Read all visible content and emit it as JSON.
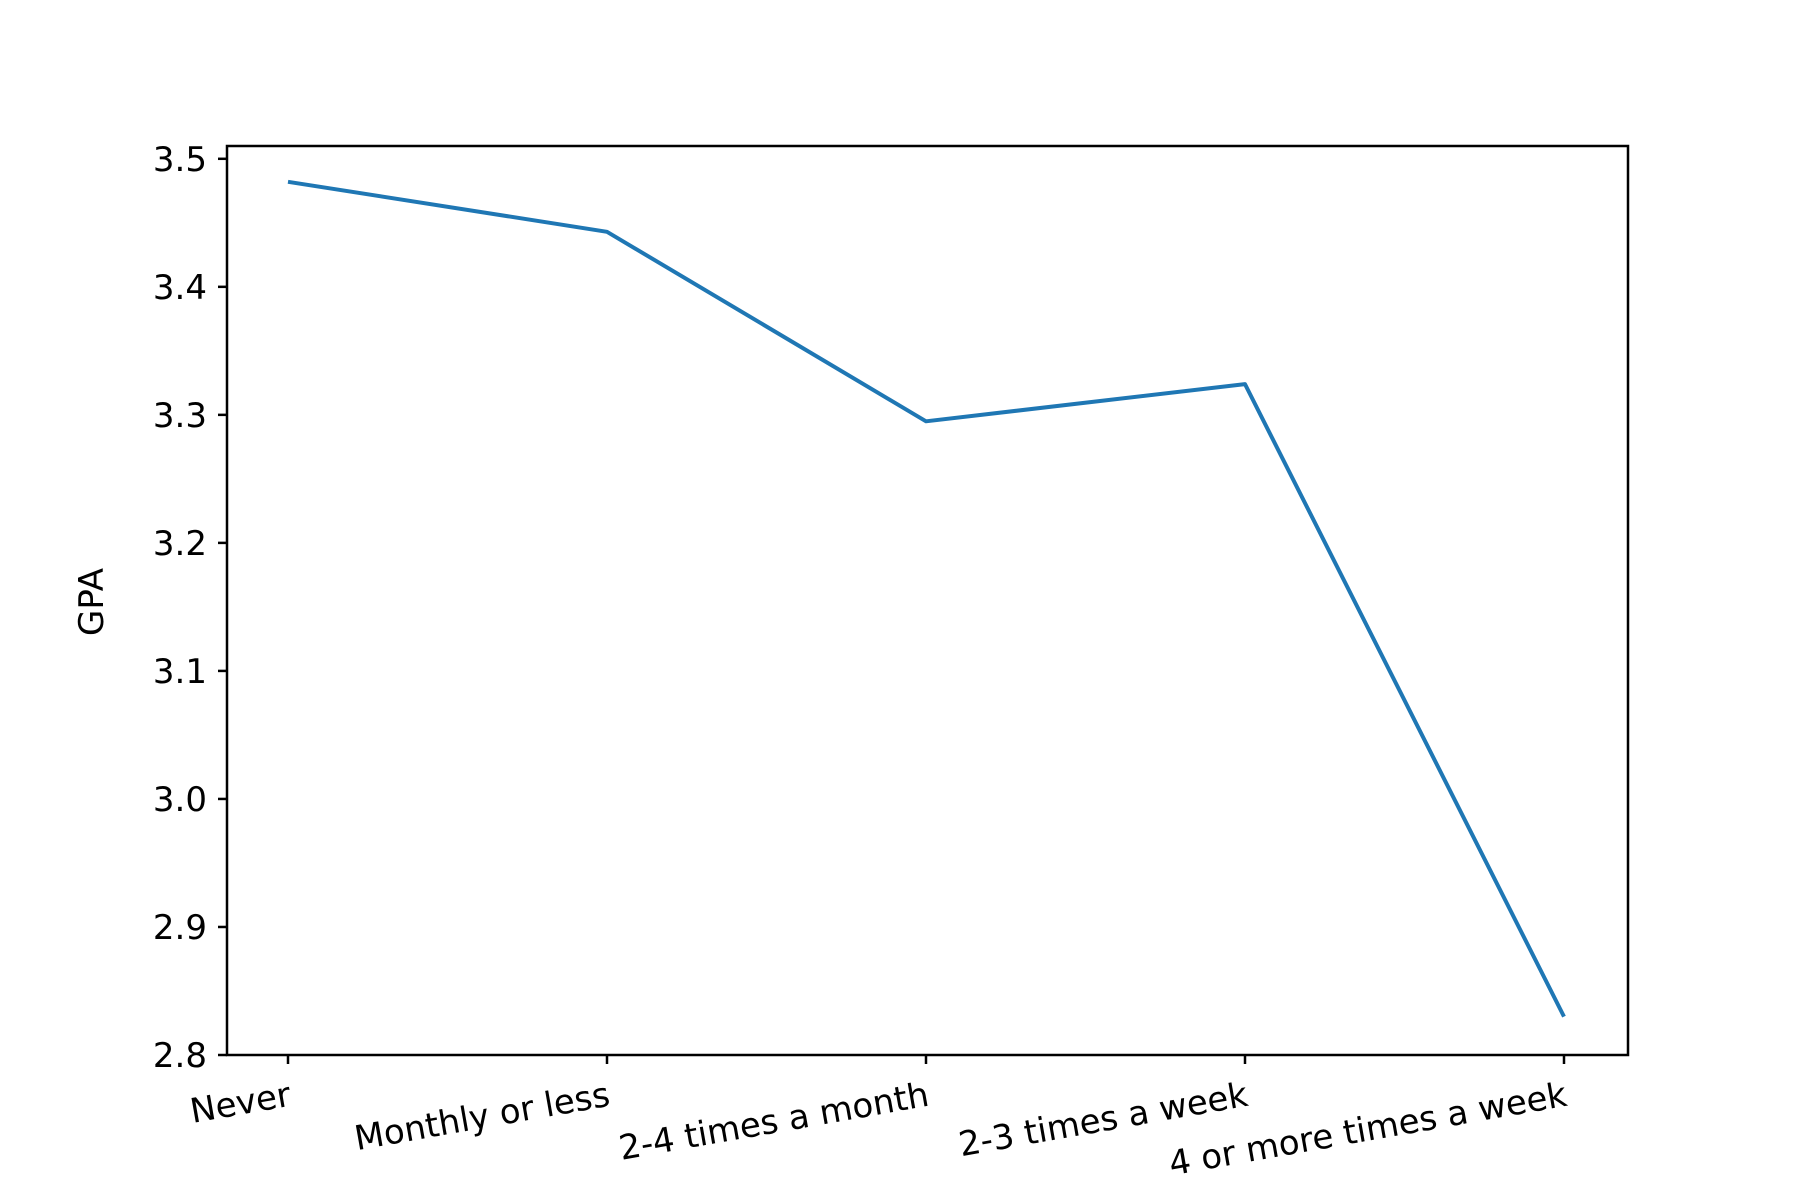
{
  "chart_data": {
    "type": "line",
    "categories": [
      "Never",
      "Monthly or less",
      "2-4 times a month",
      "2-3 times a week",
      "4 or more times a week"
    ],
    "series": [
      {
        "values": [
          3.482,
          3.443,
          3.295,
          3.324,
          2.83
        ]
      }
    ],
    "title": "",
    "xlabel": "",
    "ylabel": "GPA",
    "ylim": [
      2.8,
      3.51
    ],
    "yticks": [
      "2.8",
      "2.9",
      "3.0",
      "3.1",
      "3.2",
      "3.3",
      "3.4",
      "3.5"
    ],
    "grid": false,
    "line_color": "#1f77b4"
  }
}
